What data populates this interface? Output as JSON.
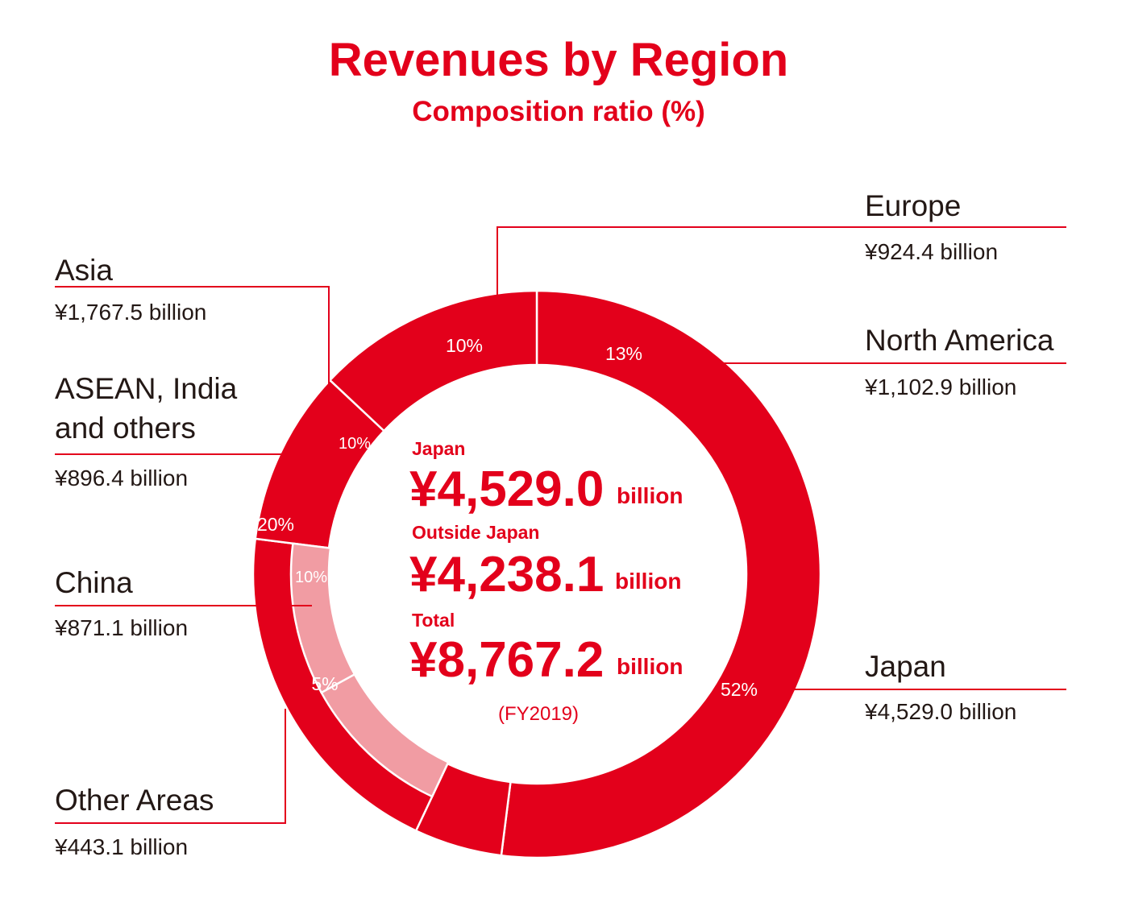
{
  "chart_data": {
    "type": "pie",
    "title": "Revenues by Region",
    "subtitle": "Composition ratio (%)",
    "unit": "%",
    "period": "(FY2019)",
    "outer_ring": [
      {
        "name": "Japan",
        "percent": 52,
        "percent_label": "52%",
        "value": "¥4,529.0 billion",
        "color": "#e3001b"
      },
      {
        "name": "Other Areas",
        "percent": 5,
        "percent_label": "5%",
        "value": "¥443.1 billion",
        "color": "#e3001b"
      },
      {
        "name": "Asia",
        "percent": 20,
        "percent_label": "20%",
        "value": "¥1,767.5 billion",
        "color": "#e3001b"
      },
      {
        "name": "Europe",
        "percent": 10,
        "percent_label": "10%",
        "value": "¥924.4 billion",
        "color": "#e3001b"
      },
      {
        "name": "North America",
        "percent": 13,
        "percent_label": "13%",
        "value": "¥1,102.9 billion",
        "color": "#e3001b"
      }
    ],
    "inner_ring": {
      "parent": "Asia",
      "segments": [
        {
          "name": "China",
          "percent": 10,
          "percent_label": "10%",
          "value": "¥871.1 billion",
          "color": "#f19ca3"
        },
        {
          "name": "ASEAN, India",
          "name_line2": "and others",
          "percent": 10,
          "percent_label": "10%",
          "value": "¥896.4 billion",
          "color": "#f19ca3"
        }
      ]
    },
    "center": {
      "japan_label": "Japan",
      "japan_amount": "¥4,529.0",
      "outside_label": "Outside Japan",
      "outside_amount": "¥4,238.1",
      "total_label": "Total",
      "total_amount": "¥8,767.2",
      "unit": "billion"
    },
    "colors": {
      "accent": "#e3001b",
      "inner_ring": "#f19ca3",
      "text": "#231815",
      "divider": "#ffffff"
    }
  }
}
